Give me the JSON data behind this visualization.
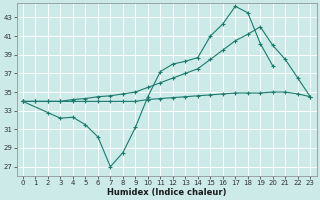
{
  "xlabel": "Humidex (Indice chaleur)",
  "bg_color": "#cceae8",
  "grid_color": "#ffffff",
  "line_color": "#1a7a6e",
  "xlim": [
    -0.5,
    23.5
  ],
  "ylim": [
    26,
    44.5
  ],
  "yticks": [
    27,
    29,
    31,
    33,
    35,
    37,
    39,
    41,
    43
  ],
  "xticks": [
    0,
    1,
    2,
    3,
    4,
    5,
    6,
    7,
    8,
    9,
    10,
    11,
    12,
    13,
    14,
    15,
    16,
    17,
    18,
    19,
    20,
    21,
    22,
    23
  ],
  "series": [
    {
      "x": [
        0,
        1,
        2,
        3,
        4,
        5,
        6,
        7,
        8,
        9,
        10,
        11,
        12,
        13,
        14,
        15,
        16,
        17,
        18,
        19,
        20,
        21,
        22,
        23
      ],
      "y": [
        34.0,
        34.0,
        34.0,
        34.0,
        34.0,
        34.0,
        34.0,
        34.0,
        34.0,
        34.0,
        34.2,
        34.3,
        34.4,
        34.5,
        34.6,
        34.7,
        34.8,
        34.9,
        34.9,
        34.9,
        35.0,
        35.0,
        34.8,
        34.5
      ]
    },
    {
      "x": [
        0,
        2,
        3,
        4,
        5,
        6,
        7,
        8,
        9,
        10,
        11,
        12,
        13,
        14,
        15,
        16,
        17,
        18,
        19,
        20
      ],
      "y": [
        34.0,
        32.8,
        32.2,
        32.3,
        31.5,
        30.2,
        27.0,
        28.5,
        31.2,
        34.5,
        37.2,
        38.0,
        38.3,
        38.7,
        41.0,
        42.3,
        44.2,
        43.5,
        40.2,
        37.8
      ]
    },
    {
      "x": [
        0,
        1,
        2,
        3,
        4,
        5,
        6,
        7,
        8,
        9,
        10,
        11,
        12,
        13,
        14,
        15,
        16,
        17,
        18,
        19,
        20,
        21,
        22,
        23
      ],
      "y": [
        34.0,
        34.0,
        34.0,
        34.0,
        34.2,
        34.3,
        34.5,
        34.6,
        34.8,
        35.0,
        35.5,
        36.0,
        36.5,
        37.0,
        37.5,
        38.5,
        39.5,
        40.5,
        41.2,
        42.0,
        40.0,
        38.5,
        36.5,
        34.5
      ]
    }
  ]
}
